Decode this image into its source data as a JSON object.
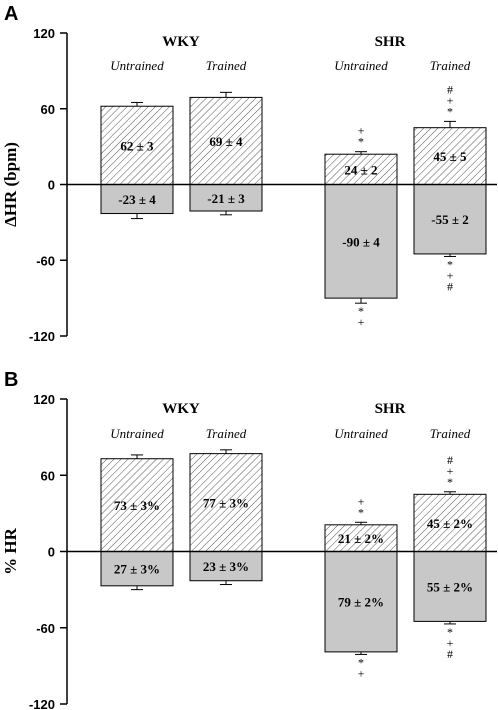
{
  "colors": {
    "axis": "#000000",
    "hatch_fill": "#ffffff",
    "hatch_line": "#555555",
    "solid_fill": "#c8c8c8",
    "text": "#000000"
  },
  "chart_data": [
    {
      "type": "bar",
      "panel_label": "A",
      "ylabel": "ΔHR (bpm)",
      "ylim": [
        -120,
        120
      ],
      "yticks": [
        120,
        60,
        0,
        -60,
        -120
      ],
      "groups": [
        {
          "label": "WKY",
          "categories": [
            "Untrained",
            "Trained"
          ]
        },
        {
          "label": "SHR",
          "categories": [
            "Untrained",
            "Trained"
          ]
        }
      ],
      "series": [
        {
          "fill": "hatched",
          "values": [
            62,
            69,
            24,
            45
          ],
          "errors": [
            3,
            4,
            2,
            5
          ],
          "labels": [
            "62 ± 3",
            "69 ± 4",
            "24 ± 2",
            "45 ± 5"
          ],
          "marks": [
            [],
            [],
            [
              "+",
              "*"
            ],
            [
              "#",
              "+",
              "*"
            ]
          ]
        },
        {
          "fill": "solid",
          "values": [
            -23,
            -21,
            -90,
            -55
          ],
          "errors": [
            4,
            3,
            4,
            2
          ],
          "labels": [
            "-23 ± 4",
            "-21 ± 3",
            "-90 ± 4",
            "-55 ± 2"
          ],
          "marks": [
            [],
            [],
            [
              "*",
              "+"
            ],
            [
              "*",
              "+",
              "#"
            ]
          ]
        }
      ]
    },
    {
      "type": "bar",
      "panel_label": "B",
      "ylabel": "% HR",
      "ylim": [
        -120,
        120
      ],
      "yticks": [
        120,
        60,
        0,
        -60,
        -120
      ],
      "groups": [
        {
          "label": "WKY",
          "categories": [
            "Untrained",
            "Trained"
          ]
        },
        {
          "label": "SHR",
          "categories": [
            "Untrained",
            "Trained"
          ]
        }
      ],
      "series": [
        {
          "fill": "hatched",
          "values": [
            73,
            77,
            21,
            45
          ],
          "errors": [
            3,
            3,
            2,
            2
          ],
          "labels": [
            "73 ± 3%",
            "77 ± 3%",
            "21 ± 2%",
            "45 ± 2%"
          ],
          "marks": [
            [],
            [],
            [
              "+",
              "*"
            ],
            [
              "#",
              "+",
              "*"
            ]
          ]
        },
        {
          "fill": "solid",
          "values": [
            -27,
            -23,
            -79,
            -55
          ],
          "errors": [
            3,
            3,
            2,
            2
          ],
          "labels": [
            "27 ± 3%",
            "23 ± 3%",
            "79 ± 2%",
            "55 ± 2%"
          ],
          "marks": [
            [],
            [],
            [
              "*",
              "+"
            ],
            [
              "*",
              "+",
              "#"
            ]
          ]
        }
      ]
    }
  ]
}
